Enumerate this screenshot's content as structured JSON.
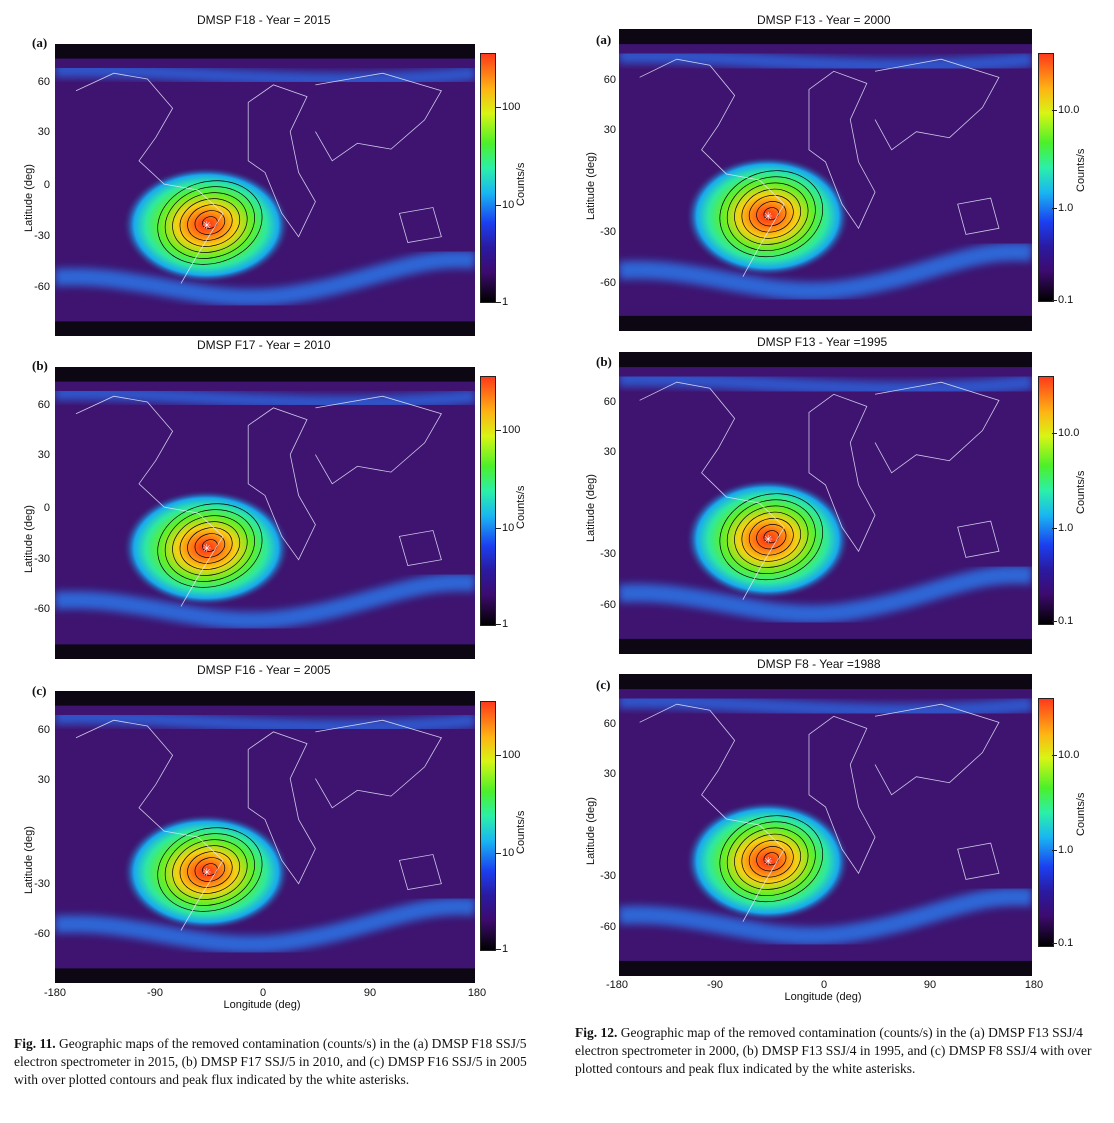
{
  "figure_left": {
    "panels": [
      {
        "letter": "(a)",
        "title": "DMSP F18 - Year = 2015",
        "cb_ticks": [
          "100",
          "10",
          "1"
        ]
      },
      {
        "letter": "(b)",
        "title": "DMSP F17 - Year = 2010",
        "cb_ticks": [
          "100",
          "10",
          "1"
        ]
      },
      {
        "letter": "(c)",
        "title": "DMSP F16 - Year = 2005",
        "cb_ticks": [
          "100",
          "10",
          "1"
        ]
      }
    ],
    "ylabels": [
      "Latitude (deg)",
      "Latitude (deg)",
      "Latitude (deg)"
    ],
    "yticks": [
      "60",
      "30",
      "0",
      "-30",
      "-60"
    ],
    "xticks": [
      "-180",
      "-90",
      "0",
      "90",
      "180"
    ],
    "xlabel": "Longitude (deg)",
    "cb_label": "Counts/s",
    "caption_label": "Fig. 11.",
    "caption_text": " Geographic maps of the removed contamination (counts/s) in the (a) DMSP F18 SSJ/5 electron spectrometer in 2015, (b) DMSP F17 SSJ/5 in 2010, and (c) DMSP F16 SSJ/5 in 2005 with over plotted contours and peak flux indicated by the white asterisks."
  },
  "figure_right": {
    "panels": [
      {
        "letter": "(a)",
        "title": "DMSP F13 - Year = 2000",
        "cb_ticks": [
          "10.0",
          "1.0",
          "0.1"
        ]
      },
      {
        "letter": "(b)",
        "title": "DMSP F13 - Year =1995",
        "cb_ticks": [
          "10.0",
          "1.0",
          "0.1"
        ]
      },
      {
        "letter": "(c)",
        "title": "DMSP F8 - Year =1988",
        "cb_ticks": [
          "10.0",
          "1.0",
          "0.1"
        ]
      }
    ],
    "ylabels": [
      "Latitude (deg)",
      "Latitude (deg)",
      "Latitude (deg)"
    ],
    "yticks_a": [
      "60",
      "30",
      "-30",
      "-60"
    ],
    "yticks": [
      "60",
      "30",
      "-30",
      "-60"
    ],
    "xticks": [
      "-180",
      "-90",
      "0",
      "90",
      "180"
    ],
    "xlabel": "Longitude (deg)",
    "cb_label": "Counts/s",
    "caption_label": "Fig. 12.",
    "caption_text": " Geographic map of the removed contamination (counts/s) in the (a) DMSP F13 SSJ/4 electron spectrometer in 2000, (b) DMSP F13 SSJ/4 in 1995, and (c) DMSP F8 SSJ/4 with over plotted contours and peak flux indicated by the white asterisks."
  },
  "chart_data": [
    {
      "type": "heatmap",
      "title": "DMSP F18 - Year = 2015",
      "xlabel": "Longitude (deg)",
      "ylabel": "Latitude (deg)",
      "xlim": [
        -180,
        180
      ],
      "ylim": [
        -90,
        90
      ],
      "colorbar": {
        "label": "Counts/s",
        "scale": "log",
        "ticks": [
          1,
          10,
          100
        ]
      },
      "features": {
        "peak_marker": "white asterisk",
        "anomaly_center_lon": -50,
        "anomaly_center_lat": -25
      }
    },
    {
      "type": "heatmap",
      "title": "DMSP F17 - Year = 2010",
      "xlabel": "Longitude (deg)",
      "ylabel": "Latitude (deg)",
      "xlim": [
        -180,
        180
      ],
      "ylim": [
        -90,
        90
      ],
      "colorbar": {
        "label": "Counts/s",
        "scale": "log",
        "ticks": [
          1,
          10,
          100
        ]
      },
      "features": {
        "peak_marker": "white asterisk",
        "anomaly_center_lon": -50,
        "anomaly_center_lat": -25
      }
    },
    {
      "type": "heatmap",
      "title": "DMSP F16 - Year = 2005",
      "xlabel": "Longitude (deg)",
      "ylabel": "Latitude (deg)",
      "xlim": [
        -180,
        180
      ],
      "ylim": [
        -90,
        90
      ],
      "colorbar": {
        "label": "Counts/s",
        "scale": "log",
        "ticks": [
          1,
          10,
          100
        ]
      },
      "features": {
        "peak_marker": "white asterisk",
        "anomaly_center_lon": -50,
        "anomaly_center_lat": -25
      }
    },
    {
      "type": "heatmap",
      "title": "DMSP F13 - Year = 2000",
      "xlabel": "Longitude (deg)",
      "ylabel": "Latitude (deg)",
      "xlim": [
        -180,
        180
      ],
      "ylim": [
        -90,
        90
      ],
      "colorbar": {
        "label": "Counts/s",
        "scale": "log",
        "ticks": [
          0.1,
          1.0,
          10.0
        ]
      },
      "features": {
        "peak_marker": "white asterisk",
        "anomaly_center_lon": -50,
        "anomaly_center_lat": -25
      }
    },
    {
      "type": "heatmap",
      "title": "DMSP F13 - Year =1995",
      "xlabel": "Longitude (deg)",
      "ylabel": "Latitude (deg)",
      "xlim": [
        -180,
        180
      ],
      "ylim": [
        -90,
        90
      ],
      "colorbar": {
        "label": "Counts/s",
        "scale": "log",
        "ticks": [
          0.1,
          1.0,
          10.0
        ]
      },
      "features": {
        "peak_marker": "white asterisk",
        "anomaly_center_lon": -50,
        "anomaly_center_lat": -25
      }
    },
    {
      "type": "heatmap",
      "title": "DMSP F8 - Year =1988",
      "xlabel": "Longitude (deg)",
      "ylabel": "Latitude (deg)",
      "xlim": [
        -180,
        180
      ],
      "ylim": [
        -90,
        90
      ],
      "colorbar": {
        "label": "Counts/s",
        "scale": "log",
        "ticks": [
          0.1,
          1.0,
          10.0
        ]
      },
      "features": {
        "peak_marker": "white asterisk",
        "anomaly_center_lon": -50,
        "anomaly_center_lat": -25
      }
    }
  ]
}
